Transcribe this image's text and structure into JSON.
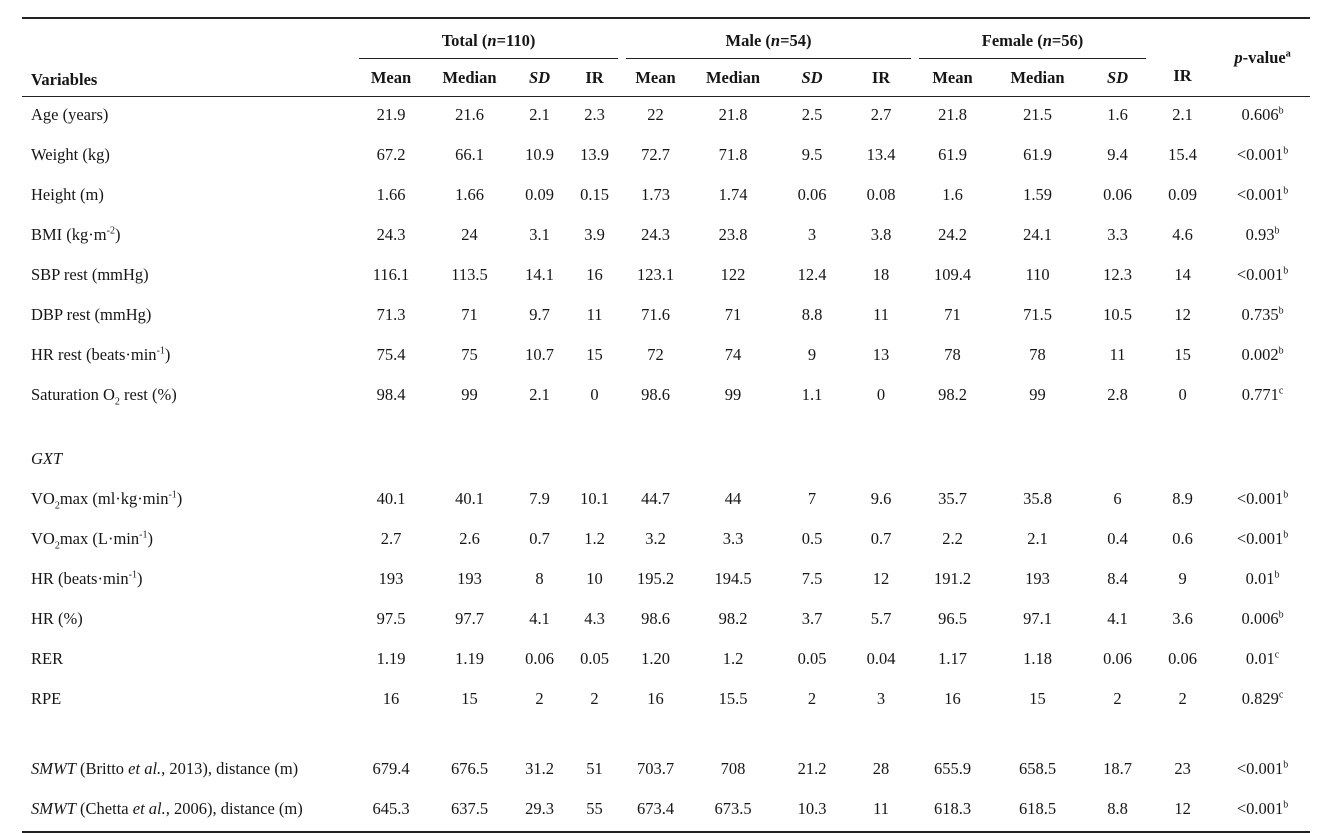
{
  "header": {
    "variables": "Variables",
    "groups": [
      [
        "Total (",
        "n",
        "=110)"
      ],
      [
        "Male (",
        "n",
        "=54)"
      ],
      [
        "Female (",
        "n",
        "=56)"
      ]
    ],
    "columns": [
      "Mean",
      "Median",
      "SD",
      "IR",
      "Mean",
      "Median",
      "SD",
      "IR",
      "Mean",
      "Median",
      "SD",
      "IR"
    ],
    "pvalue": [
      "p",
      "-value",
      "a"
    ]
  },
  "sections": [
    {
      "rows": [
        {
          "label": "Age (years)",
          "values": [
            21.9,
            21.6,
            2.1,
            2.3,
            22,
            21.8,
            2.5,
            2.7,
            21.8,
            21.5,
            1.6,
            2.1
          ],
          "p": [
            "0.606",
            "b"
          ]
        },
        {
          "label": "Weight (kg)",
          "values": [
            67.2,
            66.1,
            10.9,
            13.9,
            72.7,
            71.8,
            9.5,
            13.4,
            61.9,
            61.9,
            9.4,
            15.4
          ],
          "p": [
            "<0.001",
            "b"
          ]
        },
        {
          "label": "Height (m)",
          "values": [
            1.66,
            1.66,
            0.09,
            0.15,
            1.73,
            1.74,
            0.06,
            0.08,
            1.6,
            1.59,
            0.06,
            0.09
          ],
          "p": [
            "<0.001",
            "b"
          ]
        },
        {
          "label": [
            "BMI (kg·m",
            "-2",
            ")"
          ],
          "values": [
            24.3,
            24,
            3.1,
            3.9,
            24.3,
            23.8,
            3,
            3.8,
            24.2,
            24.1,
            3.3,
            4.6
          ],
          "p": [
            "0.93",
            "b"
          ]
        },
        {
          "label": "SBP rest (mmHg)",
          "values": [
            116.1,
            113.5,
            14.1,
            16,
            123.1,
            122,
            12.4,
            18,
            109.4,
            110,
            12.3,
            14
          ],
          "p": [
            "<0.001",
            "b"
          ]
        },
        {
          "label": "DBP rest (mmHg)",
          "values": [
            71.3,
            71,
            9.7,
            11,
            71.6,
            71,
            8.8,
            11,
            71,
            71.5,
            10.5,
            12
          ],
          "p": [
            "0.735",
            "b"
          ]
        },
        {
          "label": [
            "HR rest (beats·min",
            "-1",
            ")"
          ],
          "values": [
            75.4,
            75,
            10.7,
            15,
            72,
            74,
            9,
            13,
            78,
            78,
            11,
            15
          ],
          "p": [
            "0.002",
            "b"
          ]
        },
        {
          "label": [
            "Saturation O",
            "2",
            " rest (%)"
          ],
          "values": [
            98.4,
            99,
            2.1,
            0,
            98.6,
            99,
            1.1,
            0,
            98.2,
            99,
            2.8,
            0
          ],
          "p": [
            "0.771",
            "c"
          ]
        }
      ]
    },
    {
      "title": "GXT",
      "rows": [
        {
          "label": [
            "VO",
            "2",
            "max (ml·kg·min",
            "-1",
            ")"
          ],
          "values": [
            40.1,
            40.1,
            7.9,
            10.1,
            44.7,
            44,
            7,
            9.6,
            35.7,
            35.8,
            6,
            8.9
          ],
          "p": [
            "<0.001",
            "b"
          ]
        },
        {
          "label": [
            "VO",
            "2",
            "max (L·min",
            "-1",
            ")"
          ],
          "values": [
            2.7,
            2.6,
            0.7,
            1.2,
            3.2,
            3.3,
            0.5,
            0.7,
            2.2,
            2.1,
            0.4,
            0.6
          ],
          "p": [
            "<0.001",
            "b"
          ]
        },
        {
          "label": [
            "HR (beats·min",
            "-1",
            ")"
          ],
          "values": [
            193,
            193,
            8,
            10,
            195.2,
            194.5,
            7.5,
            12,
            191.2,
            193,
            8.4,
            9
          ],
          "p": [
            "0.01",
            "b"
          ]
        },
        {
          "label": "HR (%)",
          "values": [
            97.5,
            97.7,
            4.1,
            4.3,
            98.6,
            98.2,
            3.7,
            5.7,
            96.5,
            97.1,
            4.1,
            3.6
          ],
          "p": [
            "0.006",
            "b"
          ]
        },
        {
          "label": "RER",
          "values": [
            1.19,
            1.19,
            0.06,
            0.05,
            "1.20",
            1.2,
            0.05,
            0.04,
            1.17,
            1.18,
            0.06,
            0.06
          ],
          "p": [
            "0.01",
            "c"
          ]
        },
        {
          "label": "RPE",
          "values": [
            16,
            15,
            2,
            2,
            16,
            15.5,
            2,
            3,
            16,
            15,
            2,
            2
          ],
          "p": [
            "0.829",
            "c"
          ]
        }
      ]
    },
    {
      "rows": [
        {
          "label": [
            "SMWT",
            " (Britto ",
            "et al.,",
            " 2013), distance (m)"
          ],
          "values": [
            679.4,
            676.5,
            31.2,
            51,
            703.7,
            708,
            21.2,
            28,
            655.9,
            658.5,
            18.7,
            23
          ],
          "p": [
            "<0.001",
            "b"
          ]
        },
        {
          "label": [
            "SMWT",
            " (Chetta ",
            "et al.,",
            " 2006), distance (m)"
          ],
          "values": [
            645.3,
            637.5,
            29.3,
            55,
            673.4,
            673.5,
            10.3,
            11,
            618.3,
            618.5,
            8.8,
            12
          ],
          "p": [
            "<0.001",
            "b"
          ]
        }
      ]
    }
  ]
}
